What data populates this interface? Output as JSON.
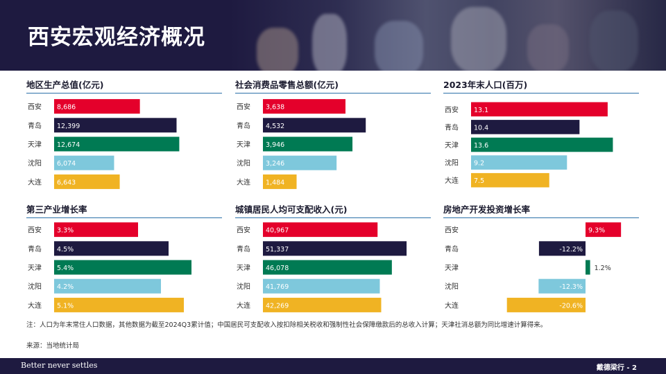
{
  "header": {
    "title": "西安宏观经济概况"
  },
  "colors": {
    "xian": "#e4002b",
    "qingdao": "#1e1a40",
    "tianjin": "#007a53",
    "shenyang": "#7ec8dc",
    "dalian": "#f0b323",
    "rule": "#2a6fa8"
  },
  "chart_data": [
    {
      "type": "bar",
      "orientation": "horizontal",
      "title": "地区生产总值(亿元)",
      "categories": [
        "西安",
        "青岛",
        "天津",
        "沈阳",
        "大连"
      ],
      "values": [
        8686,
        12399,
        12674,
        6074,
        6643
      ],
      "labels": [
        "8,686",
        "12,399",
        "12,674",
        "6,074",
        "6,643"
      ],
      "xlim": [
        0,
        17000
      ]
    },
    {
      "type": "bar",
      "orientation": "horizontal",
      "title": "社会消费品零售总额(亿元)",
      "categories": [
        "西安",
        "青岛",
        "天津",
        "沈阳",
        "大连"
      ],
      "values": [
        3638,
        4532,
        3946,
        3246,
        1484
      ],
      "labels": [
        "3,638",
        "4,532",
        "3,946",
        "3,246",
        "1,484"
      ],
      "xlim": [
        0,
        7400
      ]
    },
    {
      "type": "bar",
      "orientation": "horizontal",
      "title": "2023年末人口(百万)",
      "categories": [
        "西安",
        "青岛",
        "天津",
        "沈阳",
        "大连"
      ],
      "values": [
        13.1,
        10.4,
        13.6,
        9.2,
        7.5
      ],
      "labels": [
        "13.1",
        "10.4",
        "13.6",
        "9.2",
        "7.5"
      ],
      "xlim": [
        0,
        16.1
      ]
    },
    {
      "type": "bar",
      "orientation": "horizontal",
      "title": "第三产业增长率",
      "categories": [
        "西安",
        "青岛",
        "天津",
        "沈阳",
        "大连"
      ],
      "values": [
        3.3,
        4.5,
        5.4,
        4.2,
        5.1
      ],
      "labels": [
        "3.3%",
        "4.5%",
        "5.4%",
        "4.2%",
        "5.1%"
      ],
      "xlim": [
        0,
        6.6
      ]
    },
    {
      "type": "bar",
      "orientation": "horizontal",
      "title": "城镇居民人均可支配收入(元)",
      "categories": [
        "西安",
        "青岛",
        "天津",
        "沈阳",
        "大连"
      ],
      "values": [
        40967,
        51337,
        46078,
        41769,
        42269
      ],
      "labels": [
        "40,967",
        "51,337",
        "46,078",
        "41,769",
        "42,269"
      ],
      "xlim": [
        0,
        60000
      ]
    },
    {
      "type": "bar",
      "orientation": "horizontal",
      "title": "房地产开发投资增长率",
      "categories": [
        "西安",
        "青岛",
        "天津",
        "沈阳",
        "大连"
      ],
      "values": [
        9.3,
        -12.2,
        1.2,
        -12.3,
        -20.6
      ],
      "labels": [
        "9.3%",
        "-12.2%",
        "1.2%",
        "-12.3%",
        "-20.6%"
      ],
      "xlim": [
        -30,
        14
      ]
    }
  ],
  "note": "注：人口为年末常住人口数据，其他数据为截至2024Q3累计值；中国居民可支配收入按扣除相关税收和强制性社会保障缴款后的总收入计算；天津社消总额为同比增速计算得来。",
  "source": "来源：当地统计局",
  "footer": {
    "slogan": "Better never settles",
    "page": "戴德梁行 - 2"
  }
}
